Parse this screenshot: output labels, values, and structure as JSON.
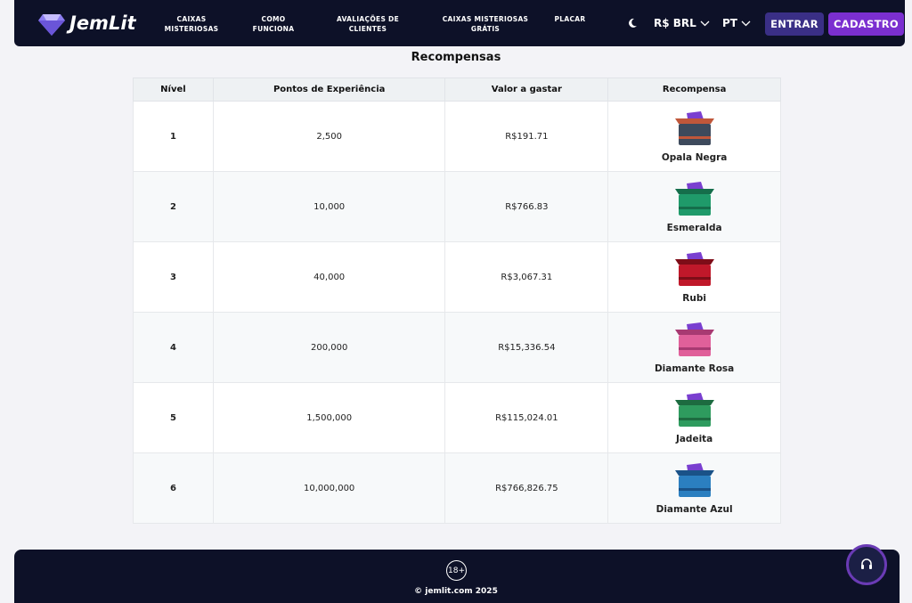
{
  "header": {
    "logo": "JemLit",
    "nav": [
      "CAIXAS MISTERIOSAS",
      "COMO FUNCIONA",
      "AVALIAÇÕES DE CLIENTES",
      "CAIXAS MISTERIOSAS GRÁTIS",
      "PLACAR"
    ],
    "currency": "R$ BRL",
    "language": "PT",
    "login": "ENTRAR",
    "signup": "CADASTRO"
  },
  "section_title": "Recompensas",
  "table": {
    "columns": [
      "Nível",
      "Pontos de Experiência",
      "Valor a gastar",
      "Recompensa"
    ],
    "rows": [
      [
        "1",
        "2,500",
        "R$191.71",
        "Opala Negra"
      ],
      [
        "2",
        "10,000",
        "R$766.83",
        "Esmeralda"
      ],
      [
        "3",
        "40,000",
        "R$3,067.31",
        "Rubi"
      ],
      [
        "4",
        "200,000",
        "R$15,336.54",
        "Diamante Rosa"
      ],
      [
        "5",
        "1,500,000",
        "R$115,024.01",
        "Jadeita"
      ],
      [
        "6",
        "10,000,000",
        "R$766,826.75",
        "Diamante Azul"
      ]
    ]
  },
  "footer": {
    "age_badge": "18+",
    "copyright": "© jemlit.com 2025"
  }
}
